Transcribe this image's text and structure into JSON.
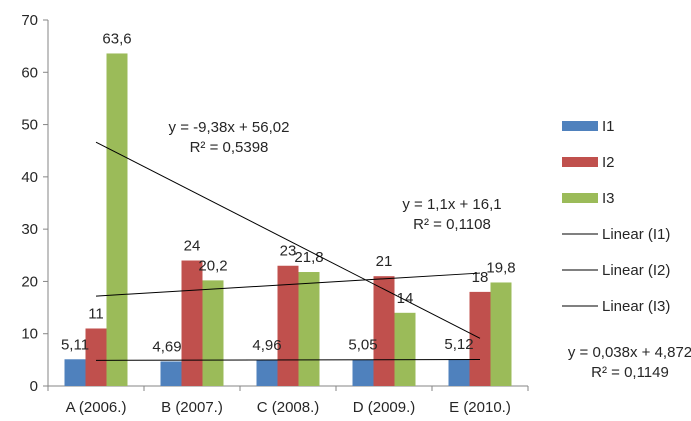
{
  "chart_data": {
    "type": "bar",
    "categories": [
      "A (2006.)",
      "B (2007.)",
      "C (2008.)",
      "D (2009.)",
      "E (2010.)"
    ],
    "series": [
      {
        "name": "I1",
        "color": "#4F81BD",
        "values": [
          5.11,
          4.69,
          4.96,
          5.05,
          5.12
        ],
        "labels": [
          "5,11",
          "4,69",
          "4,96",
          "5,05",
          "5,12"
        ]
      },
      {
        "name": "I2",
        "color": "#C0504D",
        "values": [
          11,
          24,
          23,
          21,
          18
        ],
        "labels": [
          "11",
          "24",
          "23",
          "21",
          "18"
        ]
      },
      {
        "name": "I3",
        "color": "#9BBB59",
        "values": [
          63.6,
          20.2,
          21.8,
          14,
          19.8
        ],
        "labels": [
          "63,6",
          "20,2",
          "21,8",
          "14",
          "19,8"
        ]
      }
    ],
    "trendlines": [
      {
        "name": "Linear (I1)",
        "slope": 0.038,
        "intercept": 4.872,
        "equation": "y = 0,038x + 4,872",
        "r2": "R² = 0,1149"
      },
      {
        "name": "Linear (I2)",
        "slope": 1.1,
        "intercept": 16.1,
        "equation": "y = 1,1x + 16,1",
        "r2": "R² = 0,1108"
      },
      {
        "name": "Linear (I3)",
        "slope": -9.38,
        "intercept": 56.02,
        "equation": "y = -9,38x + 56,02",
        "r2": "R² = 0,5398"
      }
    ],
    "ylim": [
      0,
      70
    ],
    "yticks": [
      0,
      10,
      20,
      30,
      40,
      50,
      60,
      70
    ],
    "grid": false,
    "legend_position": "right",
    "trendline_color": "#000000"
  }
}
